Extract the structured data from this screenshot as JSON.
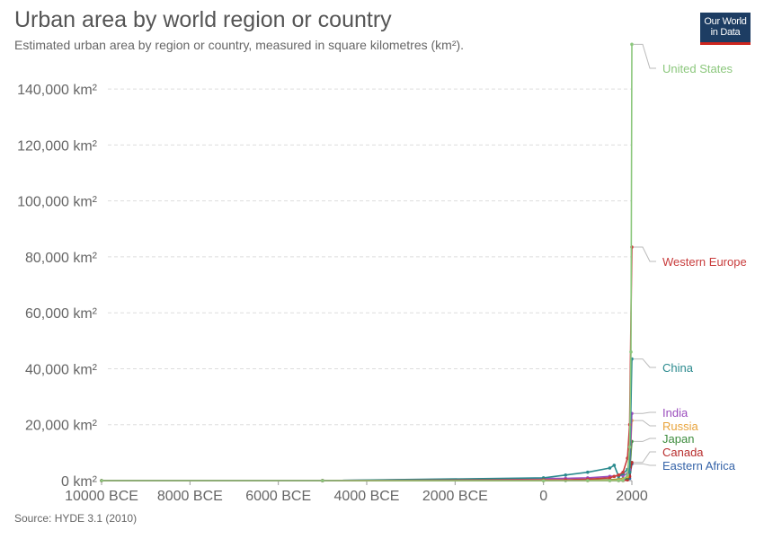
{
  "header": {
    "title": "Urban area by world region or country",
    "subtitle": "Estimated urban area by region or country, measured in square kilometres (km²).",
    "logo_line1": "Our World",
    "logo_line2": "in Data"
  },
  "footer": {
    "source": "Source: HYDE 3.1 (2010)"
  },
  "chart_data": {
    "type": "line",
    "title": "Urban area by world region or country",
    "xlabel": "",
    "ylabel": "",
    "xlim": [
      -10000,
      2000
    ],
    "ylim": [
      0,
      150000
    ],
    "grid": true,
    "legend": "line-end labels (right)",
    "y_ticks": [
      0,
      20000,
      40000,
      60000,
      80000,
      100000,
      120000,
      140000
    ],
    "y_tick_labels": [
      "0 km²",
      "20,000 km²",
      "40,000 km²",
      "60,000 km²",
      "80,000 km²",
      "100,000 km²",
      "120,000 km²",
      "140,000 km²"
    ],
    "x_ticks": [
      -10000,
      -8000,
      -6000,
      -4000,
      -2000,
      0,
      2000
    ],
    "x_tick_labels": [
      "10000 BCE",
      "8000 BCE",
      "6000 BCE",
      "4000 BCE",
      "2000 BCE",
      "0",
      "2000"
    ],
    "series": [
      {
        "name": "United States",
        "color": "#8bc77c",
        "points": [
          [
            -10000,
            0
          ],
          [
            -5000,
            0
          ],
          [
            0,
            0
          ],
          [
            1000,
            0
          ],
          [
            1500,
            0
          ],
          [
            1700,
            0
          ],
          [
            1800,
            100
          ],
          [
            1900,
            2000
          ],
          [
            1950,
            12000
          ],
          [
            1980,
            46000
          ],
          [
            2000,
            156000
          ]
        ]
      },
      {
        "name": "Western Europe",
        "color": "#c83c3c",
        "points": [
          [
            -10000,
            0
          ],
          [
            -5000,
            0
          ],
          [
            0,
            300
          ],
          [
            500,
            300
          ],
          [
            1000,
            500
          ],
          [
            1500,
            1000
          ],
          [
            1600,
            1500
          ],
          [
            1700,
            2000
          ],
          [
            1800,
            3000
          ],
          [
            1900,
            8000
          ],
          [
            1950,
            20000
          ],
          [
            2000,
            83500
          ]
        ]
      },
      {
        "name": "China",
        "color": "#2a8a8e",
        "points": [
          [
            -10000,
            0
          ],
          [
            -5000,
            0
          ],
          [
            0,
            1000
          ],
          [
            500,
            2000
          ],
          [
            1000,
            3000
          ],
          [
            1500,
            4500
          ],
          [
            1600,
            5500
          ],
          [
            1700,
            1500
          ],
          [
            1800,
            2500
          ],
          [
            1900,
            4000
          ],
          [
            1950,
            3000
          ],
          [
            2000,
            43500
          ]
        ]
      },
      {
        "name": "India",
        "color": "#9b4dbd",
        "points": [
          [
            -10000,
            0
          ],
          [
            -5000,
            0
          ],
          [
            0,
            800
          ],
          [
            500,
            800
          ],
          [
            1000,
            1000
          ],
          [
            1500,
            1500
          ],
          [
            1700,
            1800
          ],
          [
            1800,
            1800
          ],
          [
            1900,
            2500
          ],
          [
            1950,
            4000
          ],
          [
            2000,
            24000
          ]
        ]
      },
      {
        "name": "Russia",
        "color": "#e8a33b",
        "points": [
          [
            -10000,
            0
          ],
          [
            -5000,
            0
          ],
          [
            0,
            0
          ],
          [
            1000,
            100
          ],
          [
            1500,
            200
          ],
          [
            1700,
            300
          ],
          [
            1800,
            500
          ],
          [
            1900,
            1500
          ],
          [
            1950,
            4000
          ],
          [
            2000,
            21500
          ]
        ]
      },
      {
        "name": "Japan",
        "color": "#3d8c3d",
        "points": [
          [
            -10000,
            0
          ],
          [
            -5000,
            0
          ],
          [
            0,
            0
          ],
          [
            500,
            100
          ],
          [
            1000,
            200
          ],
          [
            1500,
            300
          ],
          [
            1700,
            500
          ],
          [
            1800,
            700
          ],
          [
            1900,
            1000
          ],
          [
            1950,
            3000
          ],
          [
            2000,
            14000
          ]
        ]
      },
      {
        "name": "Canada",
        "color": "#b82d2d",
        "points": [
          [
            -10000,
            0
          ],
          [
            -5000,
            0
          ],
          [
            0,
            0
          ],
          [
            1000,
            0
          ],
          [
            1500,
            0
          ],
          [
            1700,
            0
          ],
          [
            1800,
            0
          ],
          [
            1900,
            300
          ],
          [
            1950,
            1500
          ],
          [
            2000,
            6500
          ]
        ]
      },
      {
        "name": "Eastern Africa",
        "color": "#3563a8",
        "points": [
          [
            -10000,
            0
          ],
          [
            -5000,
            0
          ],
          [
            0,
            100
          ],
          [
            1000,
            200
          ],
          [
            1500,
            300
          ],
          [
            1700,
            400
          ],
          [
            1800,
            500
          ],
          [
            1900,
            600
          ],
          [
            1950,
            800
          ],
          [
            2000,
            6000
          ]
        ]
      }
    ]
  }
}
